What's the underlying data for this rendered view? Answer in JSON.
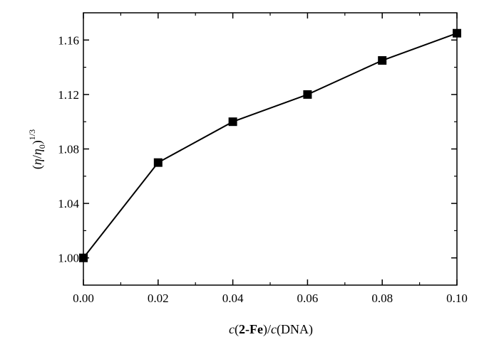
{
  "chart_data": {
    "type": "line",
    "x": [
      0.0,
      0.02,
      0.04,
      0.06,
      0.08,
      0.1
    ],
    "series": [
      {
        "values": [
          1.0,
          1.07,
          1.1,
          1.12,
          1.145,
          1.165
        ]
      }
    ],
    "xlim": [
      0.0,
      0.1
    ],
    "ylim": [
      0.98,
      1.18
    ],
    "x_ticks": [
      0.0,
      0.02,
      0.04,
      0.06,
      0.08,
      0.1
    ],
    "x_tick_labels": [
      "0.00",
      "0.02",
      "0.04",
      "0.06",
      "0.08",
      "0.10"
    ],
    "y_ticks": [
      1.0,
      1.04,
      1.08,
      1.12,
      1.16
    ],
    "y_tick_labels": [
      "1.00",
      "1.04",
      "1.08",
      "1.12",
      "1.16"
    ],
    "xlabel": {
      "c1": "c",
      "open1": "(",
      "bold": "2-Fe",
      "mid": ")/",
      "c2": "c",
      "tail": "(DNA)"
    },
    "ylabel": {
      "open": "(",
      "eta": "η",
      "slash": "/",
      "eta0": "η",
      "sub": "0",
      "close": ")",
      "sup": "1/3"
    },
    "marker": "square",
    "grid": false,
    "line_color": "#000000",
    "marker_color": "#000000"
  }
}
